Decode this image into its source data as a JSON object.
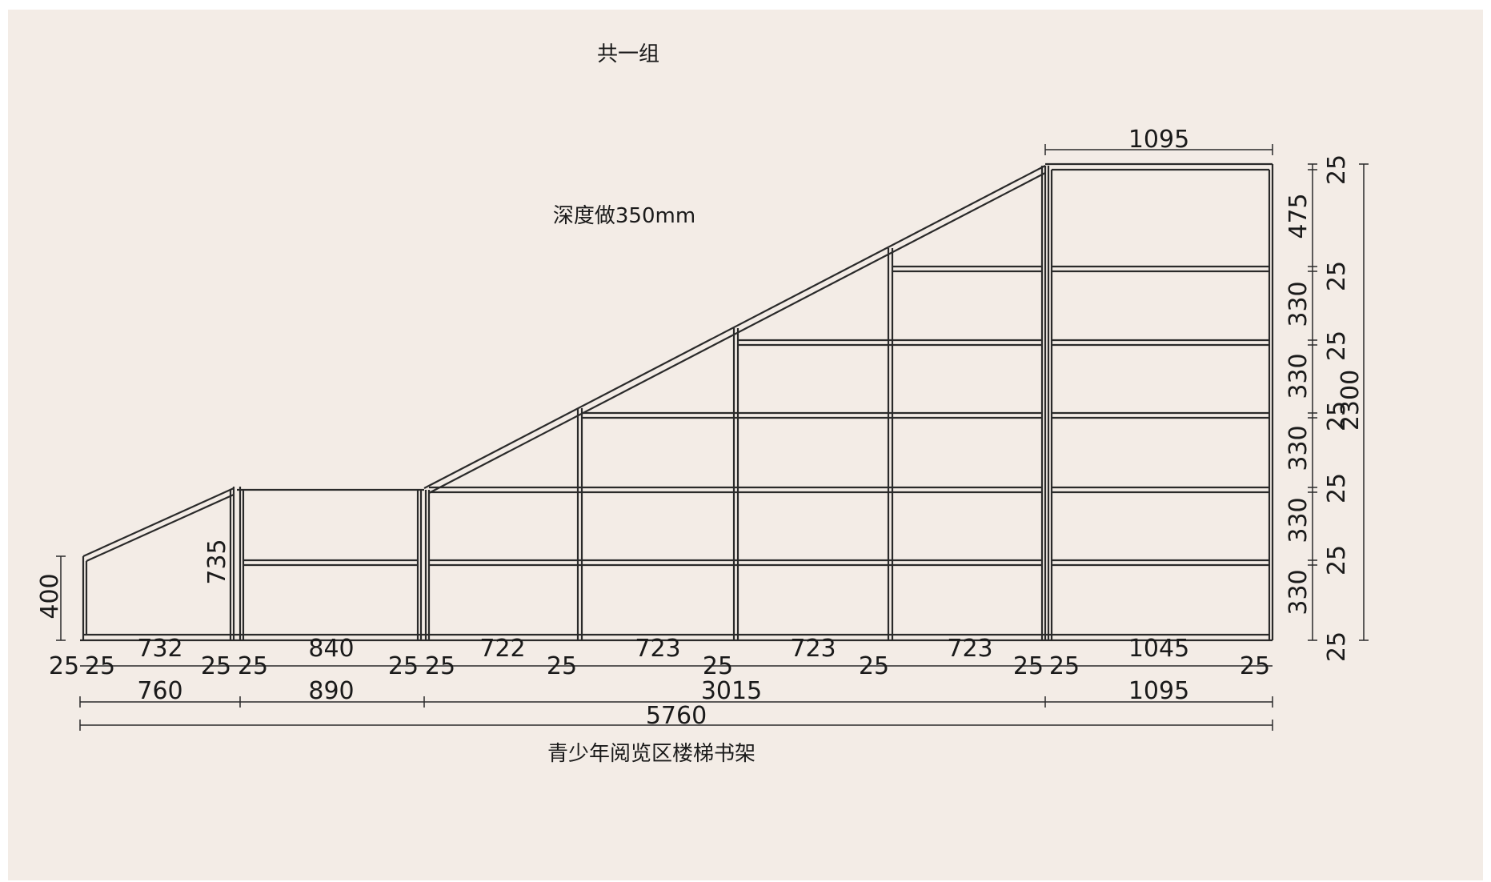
{
  "notes": {
    "quantity": "共一组",
    "depth": "深度做350mm",
    "caption": "青少年阅览区楼梯书架"
  },
  "dimensions": {
    "top_width": "1095",
    "left_height": "400",
    "second_height": "735",
    "total_height": "2300",
    "right_stack": [
      "25",
      "475",
      "25",
      "330",
      "25",
      "330",
      "25",
      "330",
      "25",
      "330",
      "25",
      "330",
      "25"
    ],
    "row1": [
      "25",
      "25",
      "732",
      "25",
      "25",
      "840",
      "25",
      "25",
      "722",
      "25",
      "723",
      "25",
      "723",
      "25",
      "723",
      "25",
      "25",
      "1045",
      "25"
    ],
    "row2": [
      "760",
      "890",
      "3015",
      "1095"
    ],
    "row3": [
      "5760"
    ]
  }
}
